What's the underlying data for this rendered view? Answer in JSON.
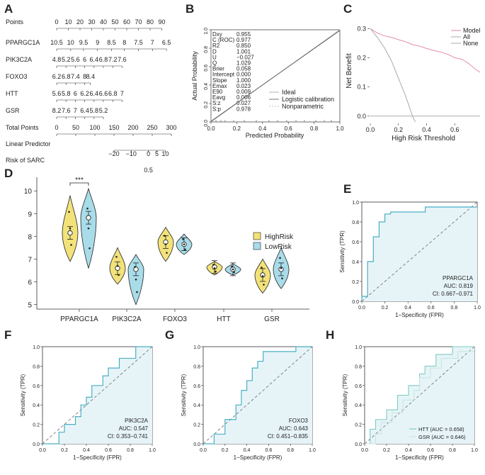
{
  "colors": {
    "highrisk": "#F2E27A",
    "lowrisk": "#A9DCE9",
    "roc_line": "#4AAFC4",
    "roc_fill": "#E6F4F8",
    "model": "#E0809A",
    "all": "#AAAAAA",
    "none": "#AAAAAA",
    "ideal": "#B0B0B0",
    "logistic": "#555555"
  },
  "panel_labels": [
    "A",
    "B",
    "C",
    "D",
    "E",
    "F",
    "G",
    "H"
  ],
  "nomogram": {
    "rows": [
      {
        "label": "Points",
        "ticks": [
          "0",
          "10",
          "20",
          "30",
          "40",
          "50",
          "60",
          "70",
          "80",
          "90"
        ],
        "tick_x": [
          0,
          10,
          20,
          30,
          40,
          50,
          60,
          70,
          80,
          90
        ]
      },
      {
        "label": "PPARGC1A",
        "ticks": [
          "10.5",
          "10",
          "9.5",
          "9",
          "8.5",
          "8",
          "7.5",
          "7",
          "6.5"
        ],
        "tick_x": [
          0,
          12,
          23,
          35,
          47,
          58,
          70,
          82,
          94
        ]
      },
      {
        "label": "PIK3C2A",
        "ticks": [
          "4.8",
          "5.2",
          "5.6",
          "6",
          "6.4",
          "6.8",
          "7.2",
          "7.6"
        ],
        "tick_x": [
          0,
          8,
          16,
          24,
          32,
          40,
          48,
          56
        ]
      },
      {
        "label": "FOXO3",
        "ticks": [
          "6.2",
          "6.8",
          "7.4",
          "8",
          "8.4"
        ],
        "tick_x": [
          0,
          8,
          16,
          24,
          29
        ]
      },
      {
        "label": "HTT",
        "ticks": [
          "5.6",
          "5.8",
          "6",
          "6.2",
          "6.4",
          "6.6",
          "6.8",
          "7"
        ],
        "tick_x": [
          0,
          8,
          16,
          24,
          32,
          40,
          48,
          56
        ]
      },
      {
        "label": "GSR",
        "ticks": [
          "8.2",
          "7.6",
          "7",
          "6.4",
          "5.8",
          "5.2"
        ],
        "tick_x": [
          0,
          8,
          16,
          24,
          32,
          40
        ]
      },
      {
        "label": "Total Points",
        "ticks": [
          "0",
          "50",
          "100",
          "150",
          "200",
          "250",
          "300"
        ],
        "tick_x": [
          0,
          50,
          100,
          150,
          200,
          250,
          300
        ]
      },
      {
        "label": "Linear Predictor",
        "ticks": [
          "−20",
          "−10",
          "0",
          "5",
          "10"
        ],
        "tick_x": [
          150,
          195,
          240,
          262,
          284
        ]
      },
      {
        "label": "Risk of SARC",
        "ticks": [
          "0.5"
        ],
        "tick_x": [
          240
        ]
      }
    ]
  },
  "calibration": {
    "stats": [
      [
        "Dxy",
        "0.955"
      ],
      [
        "C (ROC)",
        "0.977"
      ],
      [
        "R2",
        "0.850"
      ],
      [
        "D",
        "1.001"
      ],
      [
        "U",
        "−0.027"
      ],
      [
        "Q",
        "1.029"
      ],
      [
        "Brier",
        "0.058"
      ],
      [
        "Intercept",
        "0.000"
      ],
      [
        "Slope",
        "1.000"
      ],
      [
        "Emax",
        "0.023"
      ],
      [
        "E90",
        "0.009"
      ],
      [
        "Eavg",
        "0.006"
      ],
      [
        "S:z",
        "0.027"
      ],
      [
        "S:p",
        "0.978"
      ]
    ],
    "ylabel": "Actual Probability",
    "xlabel": "Predicted Probability",
    "xticks": [
      "0.0",
      "0.2",
      "0.4",
      "0.6",
      "0.8",
      "1.0"
    ],
    "yticks": [
      "0.0",
      "0.2",
      "0.4",
      "0.6",
      "0.8",
      "1.0"
    ],
    "legend": [
      "Ideal",
      "Logistic calibration",
      "Nonparametric"
    ]
  },
  "chart_data": [
    {
      "panel": "C",
      "type": "line",
      "xlabel": "High Risk Threshold",
      "ylabel": "Net Benefit",
      "xticks": [
        "0.0",
        "0.2",
        "0.4",
        "0.6"
      ],
      "yticks": [
        "0.0",
        "0.1",
        "0.2",
        "0.3"
      ],
      "xlim": [
        0,
        0.78
      ],
      "ylim": [
        -0.02,
        0.33
      ],
      "series": [
        {
          "name": "Model",
          "x": [
            0,
            0.05,
            0.1,
            0.15,
            0.2,
            0.25,
            0.3,
            0.35,
            0.4,
            0.45,
            0.5,
            0.55,
            0.6,
            0.65,
            0.7,
            0.75,
            0.78
          ],
          "y": [
            0.3,
            0.285,
            0.275,
            0.27,
            0.262,
            0.255,
            0.245,
            0.24,
            0.232,
            0.225,
            0.22,
            0.212,
            0.2,
            0.195,
            0.18,
            0.16,
            0.15
          ]
        },
        {
          "name": "All",
          "x": [
            0,
            0.05,
            0.1,
            0.15,
            0.2,
            0.25,
            0.3,
            0.32
          ],
          "y": [
            0.3,
            0.27,
            0.235,
            0.19,
            0.13,
            0.07,
            0.0,
            -0.02
          ]
        },
        {
          "name": "None",
          "x": [
            0,
            0.78
          ],
          "y": [
            0,
            0
          ]
        }
      ]
    },
    {
      "panel": "D",
      "type": "violin",
      "ylim": [
        4.8,
        10.6
      ],
      "yticks": [
        "5",
        "6",
        "7",
        "8",
        "9",
        "10"
      ],
      "categories": [
        "PPARGC1A",
        "PIK3C2A",
        "FOXO3",
        "HTT",
        "GSR"
      ],
      "legend": [
        "HighRisk",
        "LowRisk"
      ],
      "series": [
        {
          "name": "HighRisk",
          "mean": [
            8.15,
            6.6,
            7.75,
            6.65,
            6.3
          ],
          "min": [
            6.9,
            5.9,
            6.9,
            6.3,
            5.5
          ],
          "max": [
            9.8,
            7.5,
            8.4,
            6.9,
            7.0
          ]
        },
        {
          "name": "LowRisk",
          "mean": [
            8.82,
            6.55,
            7.65,
            6.55,
            6.55
          ],
          "min": [
            6.6,
            5.0,
            7.2,
            6.3,
            5.7
          ],
          "max": [
            10.1,
            7.2,
            8.1,
            6.8,
            7.5
          ]
        }
      ],
      "annotation": "***"
    },
    {
      "panel": "E",
      "type": "line",
      "title": "PPARGC1A",
      "auc": "AUC: 0.819",
      "ci": "CI: 0.667−0.971",
      "xlabel": "1−Specificity (FPR)",
      "ylabel": "Sensitivity (TPR)",
      "fpr": [
        0,
        0,
        0.05,
        0.05,
        0.1,
        0.1,
        0.15,
        0.15,
        0.2,
        0.2,
        0.25,
        0.25,
        0.3,
        0.3,
        0.55,
        0.55,
        1.0
      ],
      "tpr": [
        0,
        0.05,
        0.05,
        0.4,
        0.4,
        0.65,
        0.65,
        0.8,
        0.8,
        0.88,
        0.88,
        0.9,
        0.9,
        0.9,
        0.9,
        0.95,
        0.95
      ]
    },
    {
      "panel": "F",
      "type": "line",
      "title": "PIK3C2A",
      "auc": "AUC: 0.547",
      "ci": "CI: 0.353−0.741",
      "xlabel": "1−Specificity (FPR)",
      "ylabel": "Sensitivity (TPR)",
      "fpr": [
        0,
        0.15,
        0.15,
        0.2,
        0.2,
        0.3,
        0.3,
        0.35,
        0.35,
        0.4,
        0.4,
        0.45,
        0.45,
        0.55,
        0.55,
        0.6,
        0.6,
        0.7,
        0.7,
        0.85,
        0.85,
        1.0
      ],
      "tpr": [
        0,
        0,
        0.12,
        0.12,
        0.2,
        0.2,
        0.28,
        0.28,
        0.4,
        0.4,
        0.48,
        0.48,
        0.6,
        0.6,
        0.7,
        0.7,
        0.78,
        0.78,
        0.88,
        0.88,
        1.0,
        1.0
      ]
    },
    {
      "panel": "G",
      "type": "line",
      "title": "FOXO3",
      "auc": "AUC: 0.643",
      "ci": "CI: 0.451−0.835",
      "xlabel": "1−Specificity (FPR)",
      "ylabel": "Sensitivity (TPR)",
      "fpr": [
        0,
        0.1,
        0.1,
        0.2,
        0.2,
        0.3,
        0.3,
        0.35,
        0.35,
        0.4,
        0.4,
        0.45,
        0.45,
        0.5,
        0.5,
        0.55,
        0.55,
        0.85,
        0.85,
        1.0
      ],
      "tpr": [
        0,
        0,
        0.1,
        0.1,
        0.25,
        0.25,
        0.4,
        0.4,
        0.55,
        0.55,
        0.65,
        0.65,
        0.78,
        0.78,
        0.85,
        0.85,
        0.95,
        0.95,
        1.0,
        1.0
      ]
    },
    {
      "panel": "H",
      "type": "line",
      "legend": [
        "HTT (AUC = 0.658)",
        "GSR (AUC = 0.646)"
      ],
      "xlabel": "1−Specificity (FPR)",
      "ylabel": "Sensitivity (TPR)",
      "series": [
        {
          "name": "HTT",
          "fpr": [
            0,
            0.05,
            0.05,
            0.1,
            0.1,
            0.2,
            0.2,
            0.3,
            0.3,
            0.4,
            0.4,
            0.5,
            0.5,
            0.55,
            0.55,
            0.65,
            0.65,
            0.8,
            0.8,
            1.0
          ],
          "tpr": [
            0,
            0,
            0.15,
            0.15,
            0.25,
            0.25,
            0.35,
            0.35,
            0.5,
            0.5,
            0.6,
            0.6,
            0.72,
            0.72,
            0.8,
            0.8,
            0.92,
            0.92,
            1.0,
            1.0
          ]
        },
        {
          "name": "GSR",
          "fpr": [
            0,
            0.1,
            0.1,
            0.15,
            0.15,
            0.25,
            0.25,
            0.35,
            0.35,
            0.45,
            0.45,
            0.5,
            0.5,
            0.6,
            0.6,
            0.7,
            0.7,
            0.85,
            0.85,
            1.0
          ],
          "tpr": [
            0,
            0,
            0.1,
            0.1,
            0.22,
            0.22,
            0.32,
            0.32,
            0.45,
            0.45,
            0.55,
            0.55,
            0.68,
            0.68,
            0.78,
            0.78,
            0.88,
            0.88,
            0.95,
            0.95
          ]
        }
      ]
    }
  ]
}
